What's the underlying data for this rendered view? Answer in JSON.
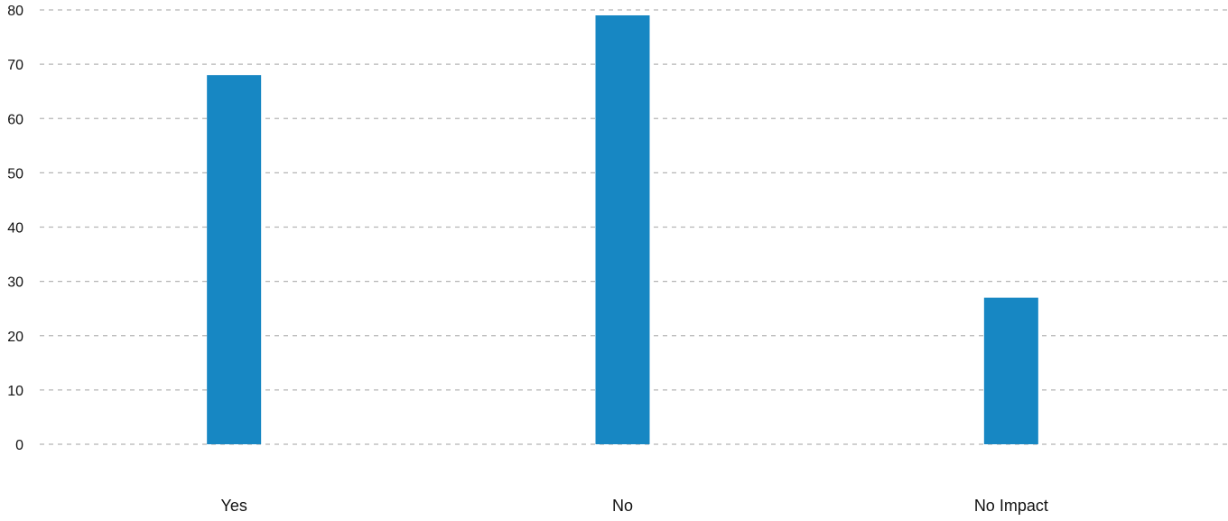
{
  "chart_data": {
    "type": "bar",
    "title": "",
    "xlabel": "",
    "ylabel": "",
    "categories": [
      "Yes",
      "No",
      "No Impact"
    ],
    "values": [
      68,
      79,
      27
    ],
    "ylim": [
      0,
      80
    ],
    "yticks": [
      0,
      10,
      20,
      30,
      40,
      50,
      60,
      70,
      80
    ],
    "grid": true,
    "legend": "none",
    "colors": {
      "bar": "#1787c3",
      "grid": "#b5b5b5",
      "text": "#111111"
    }
  }
}
